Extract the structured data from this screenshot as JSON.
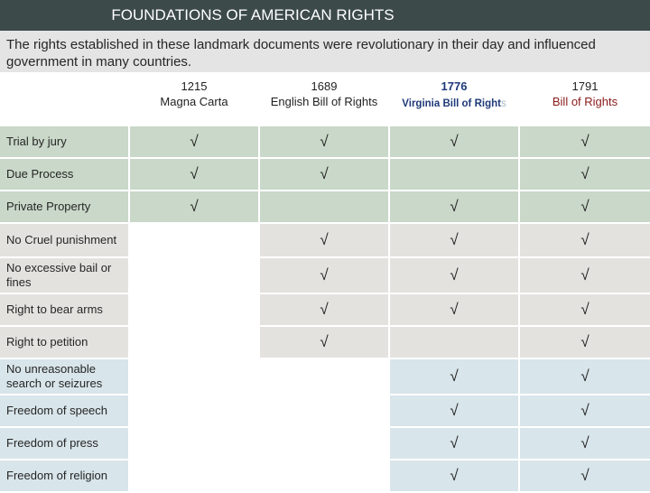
{
  "title": "FOUNDATIONS OF AMERICAN RIGHTS",
  "intro": "The rights established in these landmark documents were revolutionary in their day and influenced government in many countries.",
  "columns": [
    {
      "year": "1215",
      "name": "Magna Carta"
    },
    {
      "year": "1689",
      "name": "English Bill of Rights"
    },
    {
      "year": "1776",
      "name": "Virginia Bill of Right",
      "name_faded": "s"
    },
    {
      "year": "1791",
      "name": "Bill of Rights"
    }
  ],
  "check_mark": "√",
  "colors": {
    "title_bar": "#3d4a4a",
    "green_rows": "#c9d8c8",
    "tan_rows": "#e4e2df",
    "blue_rows": "#d8e5ea",
    "virginia_text": "#1f3a78",
    "bill_of_rights_text": "#8a1a1a"
  },
  "rows": [
    {
      "label": "Trial by jury",
      "checks": [
        true,
        true,
        true,
        true
      ]
    },
    {
      "label": "Due Process",
      "checks": [
        true,
        true,
        false,
        true
      ]
    },
    {
      "label": "Private Property",
      "checks": [
        true,
        false,
        true,
        true
      ]
    },
    {
      "label": "No Cruel punishment",
      "checks": [
        false,
        true,
        true,
        true
      ]
    },
    {
      "label": "No excessive bail or fines",
      "checks": [
        false,
        true,
        true,
        true
      ]
    },
    {
      "label": "Right to bear arms",
      "checks": [
        false,
        true,
        true,
        true
      ]
    },
    {
      "label": "Right to petition",
      "checks": [
        false,
        true,
        false,
        true
      ]
    },
    {
      "label": "No unreasonable search or seizures",
      "checks": [
        false,
        false,
        true,
        true
      ]
    },
    {
      "label": "Freedom of speech",
      "checks": [
        false,
        false,
        true,
        true
      ]
    },
    {
      "label": "Freedom of press",
      "checks": [
        false,
        false,
        true,
        true
      ]
    },
    {
      "label": "Freedom of religion",
      "checks": [
        false,
        false,
        true,
        true
      ]
    }
  ]
}
